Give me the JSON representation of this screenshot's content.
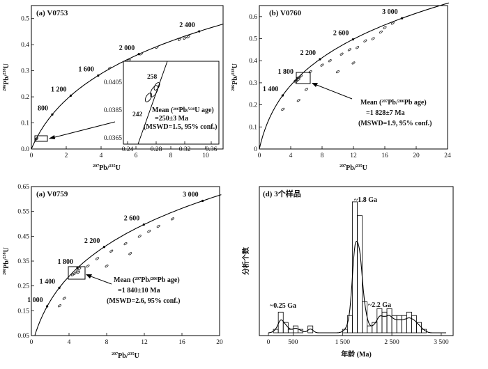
{
  "chart_data": [
    {
      "type": "scatter",
      "panel": "a",
      "title": "(a) V0753",
      "xlabel_parts": [
        "207",
        "Pb/",
        "235",
        "U"
      ],
      "ylabel_parts": [
        "206",
        "Pb/",
        "238",
        "U"
      ],
      "xlim": [
        0,
        11
      ],
      "ylim": [
        0,
        0.55
      ],
      "xticks": [
        0,
        2,
        4,
        6,
        8,
        10
      ],
      "yticks": [
        0,
        0.1,
        0.2,
        0.3,
        0.4,
        0.5
      ],
      "xtick_labels": [
        "0",
        "2",
        "4",
        "6",
        "8",
        "10"
      ],
      "ytick_labels": [
        "0.0",
        "0.1",
        "0.2",
        "0.3",
        "0.4",
        "0.5"
      ],
      "concordia_ages": [
        {
          "label": "800",
          "age": 800
        },
        {
          "label": "1 200",
          "age": 1200
        },
        {
          "label": "1 600",
          "age": 1600
        },
        {
          "label": "2 000",
          "age": 2000
        },
        {
          "label": "2 400",
          "age": 2400
        }
      ],
      "points": [
        [
          0.28,
          0.039
        ],
        [
          0.3,
          0.04
        ],
        [
          0.29,
          0.038
        ],
        [
          4.5,
          0.31
        ],
        [
          5.6,
          0.34
        ],
        [
          6.3,
          0.365
        ],
        [
          7.2,
          0.39
        ],
        [
          8.5,
          0.42
        ],
        [
          9.0,
          0.43
        ],
        [
          8.8,
          0.425
        ]
      ],
      "inset": {
        "xlim": [
          0.24,
          0.37
        ],
        "ylim": [
          0.0365,
          0.0415
        ],
        "xtick_labels": [
          "0.24",
          "0.28",
          "0.32",
          "0.36"
        ],
        "ytick_labels": [
          "0.0365",
          "0.0385",
          "0.0405"
        ],
        "labels": [
          "258",
          "242"
        ],
        "mean_lines": [
          "Mean (",
          "206",
          "Pb/",
          "238",
          "U age)",
          "=250±3 Ma",
          "(MSWD=1.5, 95% conf.)"
        ]
      }
    },
    {
      "type": "scatter",
      "panel": "b",
      "title": "(b) V0760",
      "xlabel_parts": [
        "207",
        "Pb/",
        "235",
        "U"
      ],
      "ylabel_parts": [
        "206",
        "Pb/",
        "238",
        "U"
      ],
      "xlim": [
        0,
        24
      ],
      "ylim": [
        0,
        0.65
      ],
      "xtick_labels": [
        "0",
        "4",
        "8",
        "12",
        "16",
        "20",
        "24"
      ],
      "ytick_labels": [
        "0",
        "0.1",
        "0.2",
        "0.3",
        "0.4",
        "0.5",
        "0.6"
      ],
      "concordia_ages": [
        {
          "label": "1 400",
          "age": 1400
        },
        {
          "label": "1 800",
          "age": 1800
        },
        {
          "label": "2 200",
          "age": 2200
        },
        {
          "label": "2 600",
          "age": 2600
        },
        {
          "label": "3 000",
          "age": 3000
        }
      ],
      "points": [
        [
          4.6,
          0.31
        ],
        [
          4.9,
          0.32
        ],
        [
          5.1,
          0.325
        ],
        [
          5.3,
          0.33
        ],
        [
          4.7,
          0.305
        ],
        [
          5.0,
          0.315
        ],
        [
          6.5,
          0.35
        ],
        [
          8.0,
          0.38
        ],
        [
          9.0,
          0.4
        ],
        [
          10.5,
          0.43
        ],
        [
          11.5,
          0.45
        ],
        [
          12.5,
          0.46
        ],
        [
          13.5,
          0.49
        ],
        [
          14.5,
          0.5
        ],
        [
          15.5,
          0.53
        ],
        [
          16.0,
          0.55
        ],
        [
          17.0,
          0.57
        ],
        [
          12.0,
          0.39
        ],
        [
          10.0,
          0.35
        ],
        [
          6.0,
          0.27
        ],
        [
          5.0,
          0.22
        ],
        [
          3.0,
          0.18
        ]
      ],
      "mean_lines": [
        "Mean (",
        "207",
        "Pb/",
        "206",
        "Pb age)",
        "=1 828±7 Ma",
        "(MSWD=1.9, 95% conf.)"
      ]
    },
    {
      "type": "scatter",
      "panel": "c",
      "title": "(a) V0759",
      "xlabel_parts": [
        "207",
        "Pb/",
        "235",
        "U"
      ],
      "ylabel_parts": [
        "206",
        "Pb/",
        "238",
        "U"
      ],
      "xlim": [
        0,
        20
      ],
      "ylim": [
        0.05,
        0.65
      ],
      "xtick_labels": [
        "0",
        "4",
        "8",
        "12",
        "16",
        "20"
      ],
      "ytick_labels": [
        "0.05",
        "0.15",
        "0.25",
        "0.35",
        "0.45",
        "0.55",
        "0.65"
      ],
      "concordia_ages": [
        {
          "label": "1 000",
          "age": 1000
        },
        {
          "label": "1 400",
          "age": 1400
        },
        {
          "label": "1 800",
          "age": 1800
        },
        {
          "label": "2 200",
          "age": 2200
        },
        {
          "label": "2 600",
          "age": 2600
        },
        {
          "label": "3 000",
          "age": 3000
        }
      ],
      "points": [
        [
          4.6,
          0.3
        ],
        [
          4.9,
          0.31
        ],
        [
          5.1,
          0.32
        ],
        [
          4.4,
          0.295
        ],
        [
          5.0,
          0.305
        ],
        [
          6.0,
          0.33
        ],
        [
          7.0,
          0.36
        ],
        [
          8.5,
          0.39
        ],
        [
          10.0,
          0.42
        ],
        [
          11.5,
          0.45
        ],
        [
          12.5,
          0.47
        ],
        [
          13.5,
          0.49
        ],
        [
          15.0,
          0.52
        ],
        [
          10.5,
          0.38
        ],
        [
          8.0,
          0.33
        ],
        [
          3.5,
          0.2
        ],
        [
          3.0,
          0.17
        ]
      ],
      "mean_lines": [
        "Mean (",
        "207",
        "Pb/",
        "206",
        "Pb age)",
        "=1 840±10 Ma",
        "(MSWD=2.6, 95% conf.)"
      ]
    },
    {
      "type": "bar",
      "panel": "d",
      "title": "(d) 3个样品",
      "xlabel": "年龄 (Ma)",
      "ylabel": "分析个数",
      "xlim": [
        0,
        3600
      ],
      "xtick_labels": [
        "0",
        "500",
        "1 500",
        "2 500",
        "3 500"
      ],
      "xtick_values": [
        0,
        500,
        1500,
        2500,
        3500
      ],
      "bin_width": 100,
      "bins_start": [
        0,
        100,
        200,
        300,
        400,
        500,
        600,
        700,
        800,
        900,
        1000,
        1100,
        1200,
        1300,
        1400,
        1500,
        1600,
        1700,
        1800,
        1900,
        2000,
        2100,
        2200,
        2300,
        2400,
        2500,
        2600,
        2700,
        2800,
        2900,
        3000,
        3100,
        3200
      ],
      "counts": [
        0,
        1,
        6,
        3,
        1,
        2,
        1,
        0,
        2,
        0,
        0,
        0,
        0,
        0,
        0,
        1,
        5,
        38,
        34,
        9,
        2,
        3,
        7,
        6,
        7,
        5,
        5,
        5,
        6,
        5,
        3,
        1,
        0
      ],
      "peak_labels": [
        "~0.25 Ga",
        "~1.8 Ga",
        "~2.2 Ga"
      ]
    }
  ]
}
